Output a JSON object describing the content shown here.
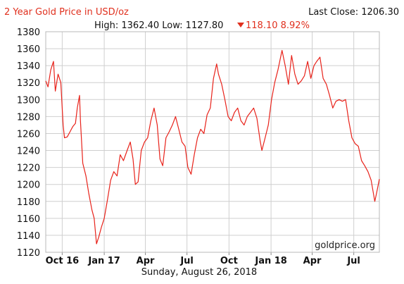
{
  "header": {
    "title": "2 Year Gold Price in USD/oz",
    "last_close": "Last Close: 1206.30",
    "high_low": "High: 1362.40 Low: 1127.80",
    "change": "118.10 8.92%"
  },
  "footer": {
    "date": "Sunday, August 26, 2018",
    "watermark": "goldprice.org"
  },
  "colors": {
    "line": "#e8221a",
    "title": "#e0301e",
    "grid": "#cfcfcf",
    "change_down": "#e0301e"
  },
  "chart_data": {
    "type": "line",
    "title": "2 Year Gold Price in USD/oz",
    "xlabel": "",
    "ylabel": "",
    "ylim": [
      1120,
      1380
    ],
    "xlim": [
      "2016-08-26",
      "2018-08-26"
    ],
    "y_ticks": [
      1120,
      1140,
      1160,
      1180,
      1200,
      1220,
      1240,
      1260,
      1280,
      1300,
      1320,
      1340,
      1360,
      1380
    ],
    "x_ticks": [
      {
        "label": "Oct 16",
        "date": "2016-10-01"
      },
      {
        "label": "Jan 17",
        "date": "2017-01-01"
      },
      {
        "label": "Apr",
        "date": "2017-04-01"
      },
      {
        "label": "Jul",
        "date": "2017-07-01"
      },
      {
        "label": "Oct",
        "date": "2017-10-01"
      },
      {
        "label": "Jan 18",
        "date": "2018-01-01"
      },
      {
        "label": "Apr",
        "date": "2018-04-01"
      },
      {
        "label": "Jul",
        "date": "2018-07-01"
      }
    ],
    "grid": true,
    "series": [
      {
        "x": [
          "2016-08-26",
          "2016-08-31",
          "2016-09-06",
          "2016-09-12",
          "2016-09-16",
          "2016-09-22",
          "2016-09-28",
          "2016-10-03",
          "2016-10-06",
          "2016-10-12",
          "2016-10-18",
          "2016-10-24",
          "2016-10-30",
          "2016-11-03",
          "2016-11-08",
          "2016-11-10",
          "2016-11-15",
          "2016-11-22",
          "2016-11-28",
          "2016-12-05",
          "2016-12-10",
          "2016-12-15",
          "2016-12-20",
          "2016-12-26",
          "2017-01-01",
          "2017-01-08",
          "2017-01-15",
          "2017-01-22",
          "2017-01-29",
          "2017-02-05",
          "2017-02-12",
          "2017-02-20",
          "2017-02-27",
          "2017-03-05",
          "2017-03-10",
          "2017-03-16",
          "2017-03-23",
          "2017-03-30",
          "2017-04-06",
          "2017-04-13",
          "2017-04-20",
          "2017-04-27",
          "2017-05-03",
          "2017-05-09",
          "2017-05-16",
          "2017-05-23",
          "2017-05-30",
          "2017-06-06",
          "2017-06-13",
          "2017-06-20",
          "2017-06-27",
          "2017-07-03",
          "2017-07-10",
          "2017-07-17",
          "2017-07-24",
          "2017-07-31",
          "2017-08-07",
          "2017-08-14",
          "2017-08-21",
          "2017-08-28",
          "2017-09-04",
          "2017-09-08",
          "2017-09-15",
          "2017-09-22",
          "2017-09-29",
          "2017-10-06",
          "2017-10-13",
          "2017-10-20",
          "2017-10-27",
          "2017-11-03",
          "2017-11-10",
          "2017-11-17",
          "2017-11-24",
          "2017-12-01",
          "2017-12-08",
          "2017-12-12",
          "2017-12-19",
          "2017-12-26",
          "2018-01-02",
          "2018-01-09",
          "2018-01-16",
          "2018-01-25",
          "2018-02-01",
          "2018-02-08",
          "2018-02-15",
          "2018-02-22",
          "2018-03-01",
          "2018-03-08",
          "2018-03-15",
          "2018-03-22",
          "2018-03-29",
          "2018-04-05",
          "2018-04-11",
          "2018-04-18",
          "2018-04-25",
          "2018-05-02",
          "2018-05-09",
          "2018-05-16",
          "2018-05-23",
          "2018-05-30",
          "2018-06-06",
          "2018-06-13",
          "2018-06-20",
          "2018-06-27",
          "2018-07-04",
          "2018-07-11",
          "2018-07-18",
          "2018-07-25",
          "2018-08-01",
          "2018-08-08",
          "2018-08-16",
          "2018-08-20",
          "2018-08-26"
        ],
        "values": [
          1322,
          1315,
          1335,
          1345,
          1310,
          1330,
          1320,
          1270,
          1255,
          1256,
          1262,
          1268,
          1272,
          1290,
          1305,
          1275,
          1225,
          1210,
          1190,
          1170,
          1160,
          1130,
          1138,
          1150,
          1160,
          1182,
          1205,
          1215,
          1210,
          1235,
          1228,
          1240,
          1250,
          1230,
          1200,
          1203,
          1240,
          1250,
          1255,
          1275,
          1290,
          1270,
          1230,
          1222,
          1255,
          1262,
          1270,
          1280,
          1265,
          1250,
          1245,
          1220,
          1212,
          1235,
          1255,
          1265,
          1260,
          1282,
          1290,
          1325,
          1342,
          1330,
          1318,
          1300,
          1280,
          1275,
          1285,
          1290,
          1275,
          1270,
          1280,
          1285,
          1290,
          1278,
          1252,
          1240,
          1255,
          1270,
          1300,
          1320,
          1335,
          1358,
          1340,
          1318,
          1352,
          1330,
          1318,
          1322,
          1328,
          1345,
          1325,
          1340,
          1345,
          1350,
          1325,
          1318,
          1305,
          1290,
          1298,
          1300,
          1298,
          1300,
          1275,
          1255,
          1248,
          1245,
          1228,
          1222,
          1215,
          1205,
          1180,
          1190,
          1206.3
        ]
      }
    ]
  }
}
